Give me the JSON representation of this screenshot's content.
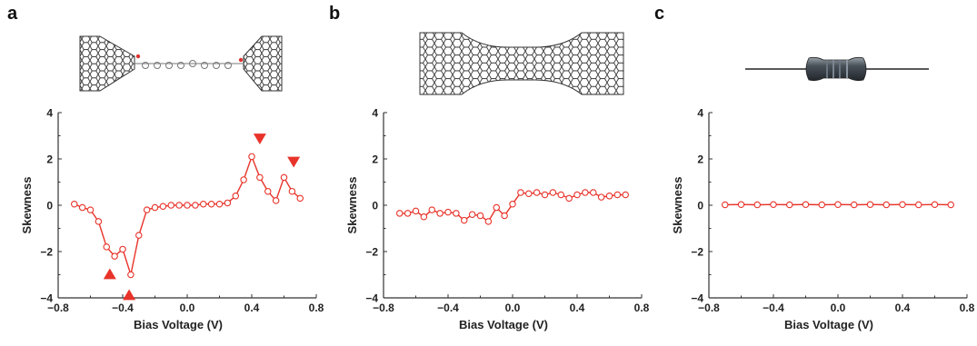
{
  "panels": [
    {
      "letter": "a"
    },
    {
      "letter": "b"
    },
    {
      "letter": "c"
    }
  ],
  "colors": {
    "series": "#e8332a",
    "axis": "#333333"
  },
  "chart_data": [
    {
      "type": "scatter",
      "xlabel": "Bias Voltage (V)",
      "ylabel": "Skewness",
      "xlim": [
        -0.8,
        0.8
      ],
      "ylim": [
        -4,
        4
      ],
      "xticks": [
        "−0.8",
        "−0.4",
        "0.0",
        "0.4",
        "0.8"
      ],
      "yticks": [
        "4",
        "2",
        "0",
        "−2",
        "−4"
      ],
      "series": [
        {
          "x": [
            -0.7,
            -0.65,
            -0.6,
            -0.55,
            -0.5,
            -0.45,
            -0.4,
            -0.35,
            -0.3,
            -0.25,
            -0.2,
            -0.15,
            -0.1,
            -0.05,
            0.0,
            0.05,
            0.1,
            0.15,
            0.2,
            0.25,
            0.3,
            0.35,
            0.4,
            0.45,
            0.5,
            0.55,
            0.6,
            0.65,
            0.7
          ],
          "y": [
            0.05,
            -0.1,
            -0.2,
            -0.7,
            -1.8,
            -2.2,
            -1.9,
            -3.0,
            -1.3,
            -0.2,
            -0.1,
            -0.05,
            0.0,
            0.0,
            0.0,
            0.0,
            0.05,
            0.05,
            0.05,
            0.1,
            0.4,
            1.1,
            2.1,
            1.2,
            0.6,
            0.2,
            1.2,
            0.6,
            0.3
          ]
        }
      ],
      "markers": [
        {
          "x": -0.48,
          "y": -3.0,
          "dir": "up"
        },
        {
          "x": -0.36,
          "y": -3.9,
          "dir": "up"
        },
        {
          "x": 0.45,
          "y": 2.9,
          "dir": "down"
        },
        {
          "x": 0.66,
          "y": 1.9,
          "dir": "down"
        }
      ]
    },
    {
      "type": "scatter",
      "xlabel": "Bias Voltage (V)",
      "ylabel": "Skewness",
      "xlim": [
        -0.8,
        0.8
      ],
      "ylim": [
        -4,
        4
      ],
      "xticks": [
        "−0.8",
        "−0.4",
        "0.0",
        "0.4",
        "0.8"
      ],
      "yticks": [
        "4",
        "2",
        "0",
        "−2",
        "−4"
      ],
      "series": [
        {
          "x": [
            -0.7,
            -0.65,
            -0.6,
            -0.55,
            -0.5,
            -0.45,
            -0.4,
            -0.35,
            -0.3,
            -0.25,
            -0.2,
            -0.15,
            -0.1,
            -0.05,
            0.0,
            0.05,
            0.1,
            0.15,
            0.2,
            0.25,
            0.3,
            0.35,
            0.4,
            0.45,
            0.5,
            0.55,
            0.6,
            0.65,
            0.7
          ],
          "y": [
            -0.35,
            -0.35,
            -0.25,
            -0.5,
            -0.2,
            -0.35,
            -0.3,
            -0.35,
            -0.65,
            -0.4,
            -0.45,
            -0.7,
            -0.1,
            -0.45,
            0.05,
            0.55,
            0.5,
            0.55,
            0.45,
            0.55,
            0.45,
            0.3,
            0.45,
            0.55,
            0.55,
            0.35,
            0.4,
            0.45,
            0.45
          ]
        }
      ],
      "markers": []
    },
    {
      "type": "scatter",
      "xlabel": "Bias Voltage (V)",
      "ylabel": "Skewness",
      "xlim": [
        -0.8,
        0.8
      ],
      "ylim": [
        -4,
        4
      ],
      "xticks": [
        "−0.8",
        "−0.4",
        "0.0",
        "0.4",
        "0.8"
      ],
      "yticks": [
        "4",
        "2",
        "0",
        "−2",
        "−4"
      ],
      "series": [
        {
          "x": [
            -0.7,
            -0.6,
            -0.5,
            -0.4,
            -0.3,
            -0.2,
            -0.1,
            0.0,
            0.1,
            0.2,
            0.3,
            0.4,
            0.5,
            0.6,
            0.7
          ],
          "y": [
            0.02,
            0.03,
            0.02,
            0.03,
            0.02,
            0.03,
            0.02,
            0.03,
            0.02,
            0.03,
            0.02,
            0.03,
            0.02,
            0.03,
            0.02
          ]
        }
      ],
      "markers": []
    }
  ]
}
